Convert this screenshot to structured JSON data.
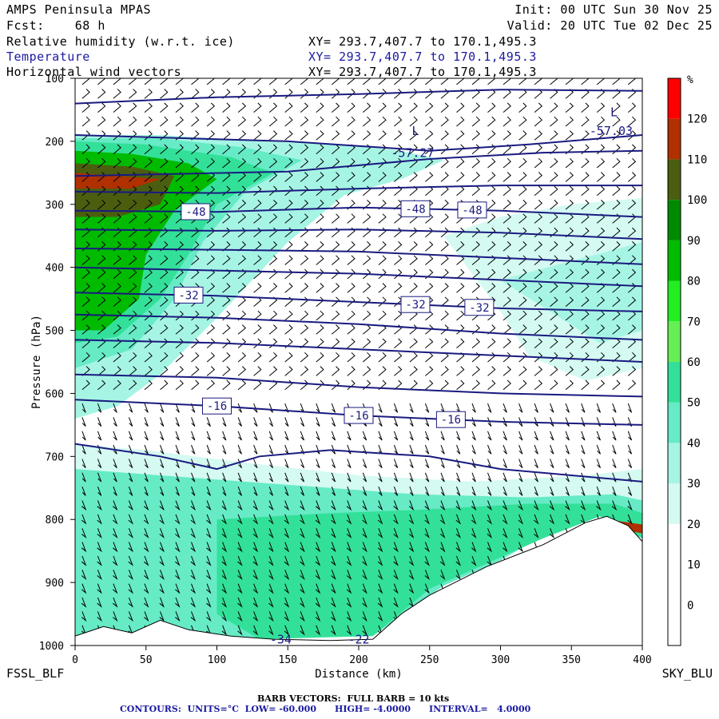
{
  "header": {
    "model": "AMPS Peninsula MPAS",
    "forecast": "Fcst:    68 h",
    "init": "Init: 00 UTC Sun 30 Nov 25",
    "valid": "Valid: 20 UTC Tue 02 Dec 25",
    "fields": [
      {
        "name": "Relative humidity (w.r.t. ice)",
        "xy": "XY= 293.7,407.7 to 170.1,495.3"
      },
      {
        "name": "Temperature",
        "xy": "XY= 293.7,407.7 to 170.1,495.3"
      },
      {
        "name": "Horizontal wind vectors",
        "xy": "XY= 293.7,407.7 to 170.1,495.3"
      }
    ]
  },
  "footer": {
    "barb": "BARB VECTORS:  FULL BARB = 10 kts",
    "contours": "CONTOURS:  UNITS=°C  LOW= -60.000      HIGH= -4.0000      INTERVAL=   4.0000"
  },
  "chart_data": {
    "type": "heatmap",
    "title": "Relative humidity (w.r.t. ice)",
    "xlabel": "Distance (km)",
    "ylabel": "Pressure (hPa)",
    "xlim": [
      0,
      400
    ],
    "ylim": [
      1000,
      100
    ],
    "x_ticks": [
      "0",
      "50",
      "100",
      "150",
      "200",
      "250",
      "300",
      "350",
      "400"
    ],
    "y_ticks": [
      "100",
      "200",
      "300",
      "400",
      "500",
      "600",
      "700",
      "800",
      "900",
      "1000"
    ],
    "left_end_label": "FSSL_BLF",
    "right_end_label": "SKY_BLU",
    "colorbar": {
      "unit": "%",
      "ticks": [
        "0",
        "10",
        "20",
        "30",
        "40",
        "50",
        "60",
        "70",
        "80",
        "90",
        "100",
        "110",
        "120"
      ],
      "colors": [
        "#ffffff",
        "#ffffff",
        "#ffffff",
        "#d4faf2",
        "#a6f5e4",
        "#66ebc6",
        "#33e099",
        "#66ee55",
        "#22ee22",
        "#00bb00",
        "#008a00",
        "#4b5e0f",
        "#b03000",
        "#ff0000"
      ]
    },
    "rh_regions": [
      {
        "color": "#a6f5e4",
        "points": [
          [
            0,
            190
          ],
          [
            60,
            190
          ],
          [
            130,
            200
          ],
          [
            190,
            205
          ],
          [
            230,
            215
          ],
          [
            260,
            230
          ],
          [
            230,
            260
          ],
          [
            190,
            285
          ],
          [
            150,
            360
          ],
          [
            100,
            480
          ],
          [
            60,
            570
          ],
          [
            30,
            620
          ],
          [
            0,
            640
          ]
        ]
      },
      {
        "color": "#66ebc6",
        "points": [
          [
            0,
            195
          ],
          [
            60,
            195
          ],
          [
            120,
            210
          ],
          [
            160,
            230
          ],
          [
            120,
            280
          ],
          [
            90,
            360
          ],
          [
            70,
            450
          ],
          [
            40,
            530
          ],
          [
            0,
            560
          ]
        ]
      },
      {
        "color": "#33e099",
        "points": [
          [
            0,
            200
          ],
          [
            50,
            205
          ],
          [
            110,
            225
          ],
          [
            140,
            250
          ],
          [
            100,
            300
          ],
          [
            80,
            380
          ],
          [
            60,
            450
          ],
          [
            30,
            510
          ],
          [
            0,
            520
          ]
        ]
      },
      {
        "color": "#00bb00",
        "points": [
          [
            0,
            215
          ],
          [
            40,
            220
          ],
          [
            80,
            235
          ],
          [
            100,
            260
          ],
          [
            70,
            310
          ],
          [
            50,
            380
          ],
          [
            45,
            450
          ],
          [
            20,
            500
          ],
          [
            0,
            500
          ]
        ]
      },
      {
        "color": "#4b5e0f",
        "points": [
          [
            0,
            235
          ],
          [
            40,
            240
          ],
          [
            70,
            255
          ],
          [
            60,
            300
          ],
          [
            30,
            320
          ],
          [
            0,
            320
          ]
        ]
      },
      {
        "color": "#b03000",
        "points": [
          [
            0,
            250
          ],
          [
            30,
            255
          ],
          [
            60,
            260
          ],
          [
            40,
            275
          ],
          [
            0,
            275
          ]
        ]
      },
      {
        "color": "#d4faf2",
        "points": [
          [
            260,
            350
          ],
          [
            300,
            320
          ],
          [
            350,
            300
          ],
          [
            400,
            290
          ],
          [
            400,
            560
          ],
          [
            360,
            580
          ],
          [
            320,
            540
          ],
          [
            300,
            470
          ]
        ]
      },
      {
        "color": "#a6f5e4",
        "points": [
          [
            300,
            420
          ],
          [
            350,
            390
          ],
          [
            400,
            360
          ],
          [
            400,
            500
          ],
          [
            370,
            520
          ]
        ]
      },
      {
        "color": "#d4faf2",
        "points": [
          [
            0,
            680
          ],
          [
            50,
            690
          ],
          [
            120,
            710
          ],
          [
            200,
            730
          ],
          [
            280,
            740
          ],
          [
            360,
            730
          ],
          [
            400,
            720
          ],
          [
            400,
            830
          ],
          [
            370,
            795
          ],
          [
            340,
            820
          ],
          [
            300,
            860
          ],
          [
            250,
            905
          ],
          [
            210,
            985
          ],
          [
            120,
            990
          ],
          [
            0,
            990
          ]
        ]
      },
      {
        "color": "#66ebc6",
        "points": [
          [
            0,
            720
          ],
          [
            60,
            730
          ],
          [
            150,
            745
          ],
          [
            240,
            760
          ],
          [
            320,
            765
          ],
          [
            380,
            760
          ],
          [
            400,
            770
          ],
          [
            400,
            830
          ],
          [
            370,
            795
          ],
          [
            330,
            825
          ],
          [
            300,
            865
          ],
          [
            260,
            905
          ],
          [
            210,
            985
          ],
          [
            120,
            990
          ],
          [
            0,
            990
          ]
        ]
      },
      {
        "color": "#33e099",
        "points": [
          [
            100,
            800
          ],
          [
            180,
            790
          ],
          [
            240,
            785
          ],
          [
            320,
            775
          ],
          [
            380,
            775
          ],
          [
            400,
            790
          ],
          [
            400,
            830
          ],
          [
            370,
            795
          ],
          [
            330,
            830
          ],
          [
            290,
            870
          ],
          [
            250,
            910
          ],
          [
            210,
            985
          ],
          [
            130,
            990
          ],
          [
            100,
            950
          ]
        ]
      },
      {
        "color": "#b03000",
        "points": [
          [
            375,
            800
          ],
          [
            400,
            808
          ],
          [
            400,
            822
          ],
          [
            375,
            812
          ]
        ]
      }
    ],
    "terrain": [
      [
        0,
        985
      ],
      [
        20,
        970
      ],
      [
        40,
        980
      ],
      [
        60,
        960
      ],
      [
        80,
        975
      ],
      [
        110,
        985
      ],
      [
        140,
        990
      ],
      [
        180,
        992
      ],
      [
        210,
        990
      ],
      [
        230,
        950
      ],
      [
        250,
        920
      ],
      [
        290,
        875
      ],
      [
        330,
        840
      ],
      [
        360,
        805
      ],
      [
        375,
        795
      ],
      [
        390,
        810
      ],
      [
        400,
        835
      ]
    ],
    "isotherms": [
      {
        "points": [
          [
            0,
            140
          ],
          [
            100,
            130
          ],
          [
            200,
            125
          ],
          [
            300,
            118
          ],
          [
            400,
            120
          ]
        ]
      },
      {
        "points": [
          [
            0,
            190
          ],
          [
            150,
            200
          ],
          [
            250,
            215
          ],
          [
            320,
            205
          ],
          [
            400,
            190
          ]
        ]
      },
      {
        "points": [
          [
            0,
            255
          ],
          [
            150,
            248
          ],
          [
            250,
            228
          ],
          [
            330,
            218
          ],
          [
            400,
            215
          ]
        ]
      },
      {
        "points": [
          [
            0,
            280
          ],
          [
            100,
            282
          ],
          [
            200,
            275
          ],
          [
            300,
            270
          ],
          [
            400,
            270
          ]
        ]
      },
      {
        "points": [
          [
            0,
            310
          ],
          [
            100,
            312
          ],
          [
            200,
            305
          ],
          [
            300,
            310
          ],
          [
            400,
            320
          ]
        ],
        "label": "-48",
        "label_x": [
          85,
          240,
          280
        ]
      },
      {
        "points": [
          [
            0,
            340
          ],
          [
            100,
            342
          ],
          [
            200,
            340
          ],
          [
            300,
            345
          ],
          [
            400,
            355
          ]
        ]
      },
      {
        "points": [
          [
            0,
            370
          ],
          [
            100,
            372
          ],
          [
            200,
            375
          ],
          [
            300,
            385
          ],
          [
            400,
            395
          ]
        ]
      },
      {
        "points": [
          [
            0,
            400
          ],
          [
            100,
            405
          ],
          [
            200,
            410
          ],
          [
            300,
            420
          ],
          [
            400,
            430
          ]
        ]
      },
      {
        "points": [
          [
            0,
            440
          ],
          [
            100,
            445
          ],
          [
            200,
            455
          ],
          [
            300,
            465
          ],
          [
            400,
            470
          ]
        ],
        "label": "-32",
        "label_x": [
          80,
          240,
          285
        ]
      },
      {
        "points": [
          [
            0,
            475
          ],
          [
            100,
            480
          ],
          [
            200,
            490
          ],
          [
            300,
            505
          ],
          [
            400,
            515
          ]
        ]
      },
      {
        "points": [
          [
            0,
            515
          ],
          [
            100,
            520
          ],
          [
            200,
            530
          ],
          [
            300,
            540
          ],
          [
            400,
            550
          ]
        ]
      },
      {
        "points": [
          [
            0,
            570
          ],
          [
            100,
            575
          ],
          [
            200,
            590
          ],
          [
            300,
            600
          ],
          [
            400,
            605
          ]
        ]
      },
      {
        "points": [
          [
            0,
            610
          ],
          [
            100,
            620
          ],
          [
            200,
            635
          ],
          [
            300,
            645
          ],
          [
            400,
            650
          ]
        ],
        "label": "-16",
        "label_x": [
          100,
          200,
          265
        ]
      },
      {
        "points": [
          [
            0,
            680
          ],
          [
            60,
            700
          ],
          [
            100,
            720
          ],
          [
            130,
            700
          ],
          [
            180,
            690
          ],
          [
            250,
            700
          ],
          [
            300,
            720
          ],
          [
            350,
            730
          ],
          [
            400,
            740
          ]
        ]
      }
    ],
    "annotations": [
      {
        "text": "L",
        "x": 380,
        "y": 160
      },
      {
        "text": "-57.03",
        "x": 378,
        "y": 190
      },
      {
        "text": "L",
        "x": 240,
        "y": 190
      },
      {
        "text": "-57.27",
        "x": 238,
        "y": 225
      },
      {
        "text": "-34",
        "x": 145,
        "y": 997
      },
      {
        "text": "-22",
        "x": 200,
        "y": 997
      }
    ]
  }
}
